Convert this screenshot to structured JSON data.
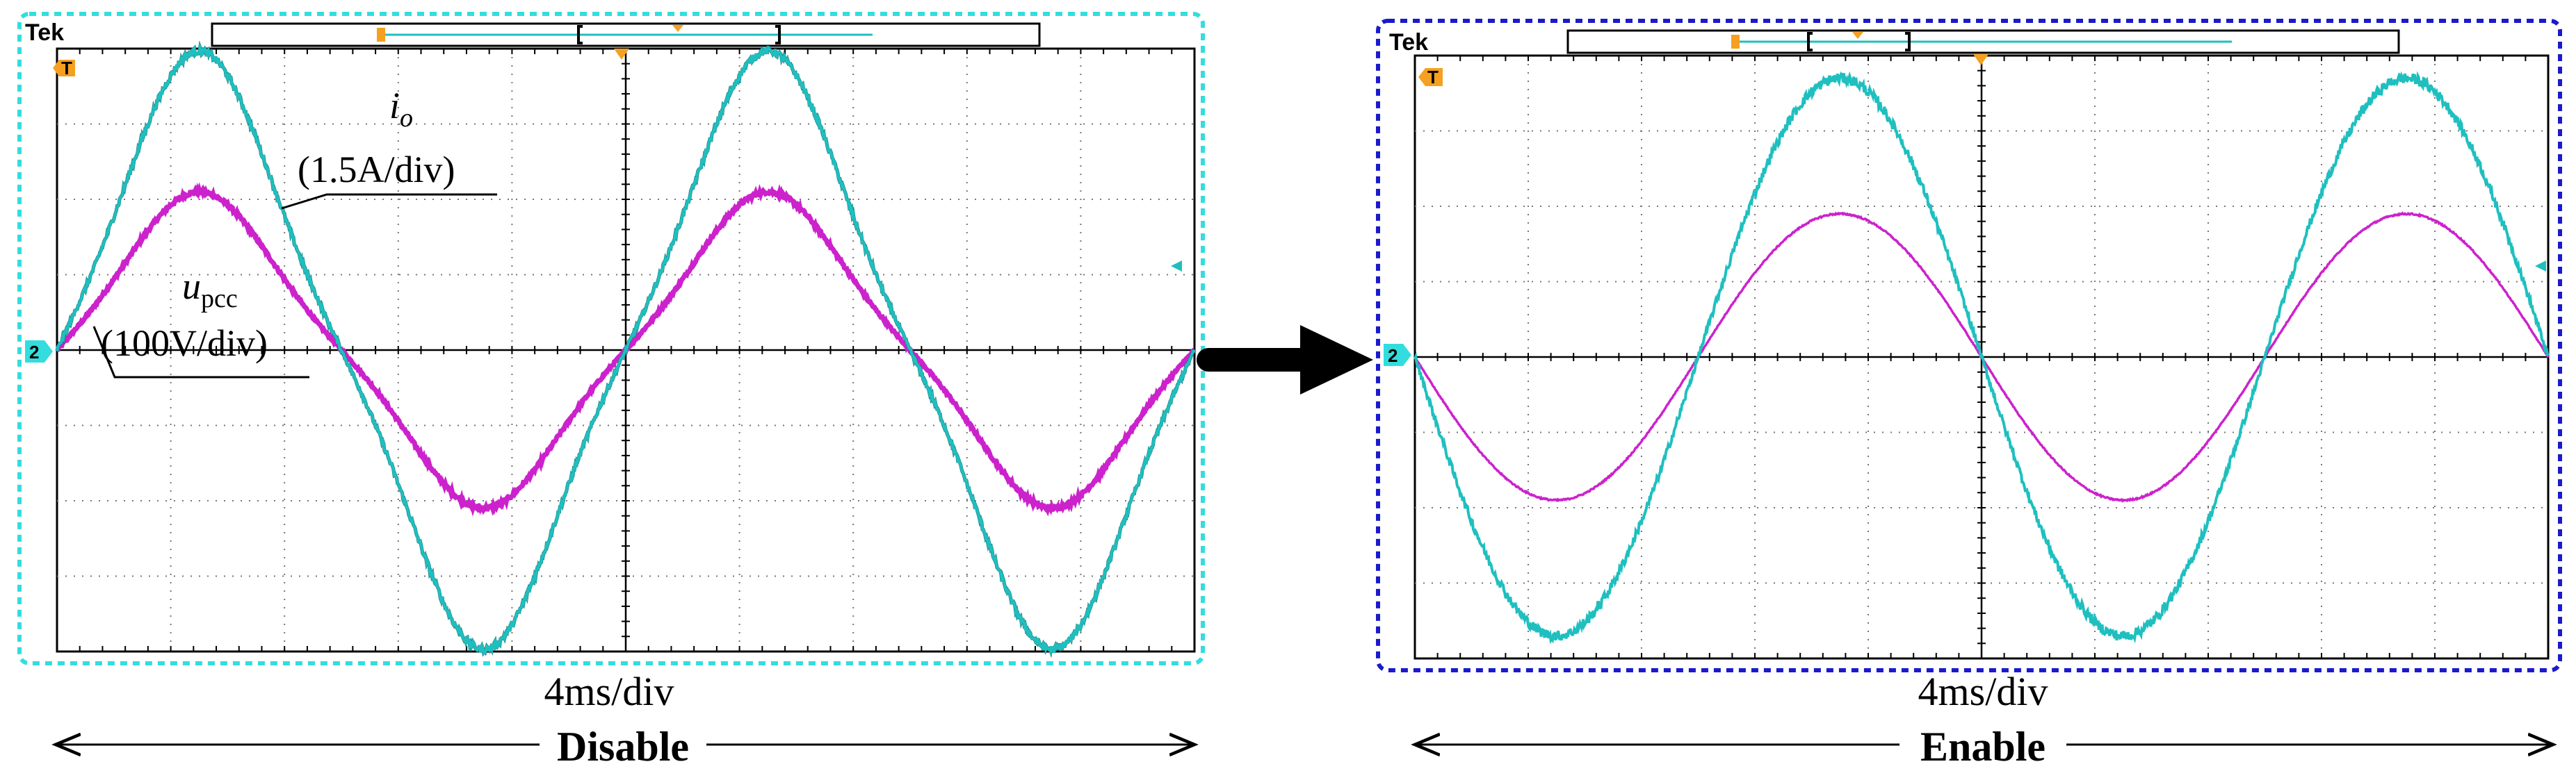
{
  "colors": {
    "current": "#1fbfbf",
    "current_dark": "#0f6f6f",
    "voltage": "#cc22cc",
    "frame_left": "#33dddd",
    "frame_right": "#1a1acc",
    "marker": "#f5a020"
  },
  "chart_data": [
    {
      "type": "line",
      "mode_label": "Disable",
      "scope_brand": "Tek",
      "timebase": "4ms/div",
      "channel_marker": "2",
      "trigger_marker": "T",
      "annotations": {
        "current_symbol": "i",
        "current_sub": "o",
        "current_scale": "(1.5A/div)",
        "voltage_symbol": "u",
        "voltage_sub": "pcc",
        "voltage_scale": "(100V/div)"
      },
      "x_divisions": 10,
      "y_divisions": 8,
      "xlim": [
        0,
        40
      ],
      "x_unit": "ms",
      "series": [
        {
          "name": "i_o",
          "unit": "div",
          "amplitude": 3.5,
          "frequency_hz": 50,
          "phase_deg": 0,
          "distortion": "flat-topped, noisy"
        },
        {
          "name": "u_pcc",
          "unit": "div",
          "amplitude": 1.85,
          "frequency_hz": 50,
          "phase_deg": 0,
          "distortion": "flattened peaks"
        }
      ]
    },
    {
      "type": "line",
      "mode_label": "Enable",
      "scope_brand": "Tek",
      "timebase": "4ms/div",
      "channel_marker": "2",
      "trigger_marker": "T",
      "x_divisions": 10,
      "y_divisions": 8,
      "xlim": [
        0,
        40
      ],
      "x_unit": "ms",
      "series": [
        {
          "name": "i_o",
          "unit": "div",
          "amplitude": 3.7,
          "frequency_hz": 50,
          "phase_deg": 180,
          "distortion": "sinusoidal, noisy"
        },
        {
          "name": "u_pcc",
          "unit": "div",
          "amplitude": 1.9,
          "frequency_hz": 50,
          "phase_deg": 180,
          "distortion": "sinusoidal"
        }
      ]
    }
  ]
}
